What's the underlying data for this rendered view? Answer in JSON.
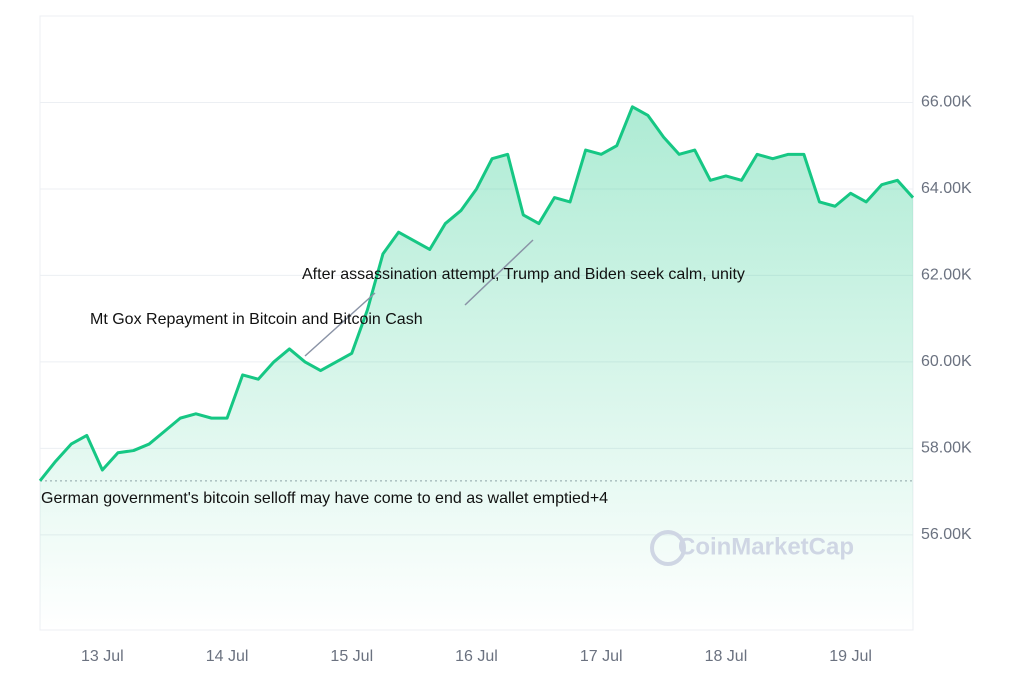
{
  "chart_data": {
    "type": "line",
    "categories": [
      null,
      null,
      null,
      null,
      "13 Jul",
      null,
      null,
      null,
      null,
      null,
      null,
      null,
      "14 Jul",
      null,
      null,
      null,
      null,
      null,
      null,
      null,
      "15 Jul",
      null,
      null,
      null,
      null,
      null,
      null,
      null,
      "16 Jul",
      null,
      null,
      null,
      null,
      null,
      null,
      null,
      "17 Jul",
      null,
      null,
      null,
      null,
      null,
      null,
      null,
      "18 Jul",
      null,
      null,
      null,
      null,
      null,
      null,
      null,
      "19 Jul",
      null,
      null,
      null,
      null
    ],
    "series": [
      {
        "color": "#16c784",
        "values": [
          57250,
          57700,
          58100,
          58300,
          57500,
          57900,
          57950,
          58100,
          58400,
          58700,
          58800,
          58700,
          58700,
          59700,
          59600,
          60000,
          60300,
          60000,
          59800,
          60000,
          60200,
          61200,
          62500,
          63000,
          62800,
          62600,
          63200,
          63500,
          64000,
          64700,
          64800,
          63400,
          63200,
          63800,
          63700,
          64900,
          64800,
          65000,
          65900,
          65700,
          65200,
          64800,
          64900,
          64200,
          64300,
          64200,
          64800,
          64700,
          64800,
          64800,
          63700,
          63600,
          63900,
          63700,
          64100,
          64200,
          63800
        ]
      }
    ],
    "ylim": [
      53800,
      68000
    ],
    "yticks": [
      {
        "value": 56000,
        "label": "56.00K"
      },
      {
        "value": 58000,
        "label": "58.00K"
      },
      {
        "value": 60000,
        "label": "60.00K"
      },
      {
        "value": 62000,
        "label": "62.00K"
      },
      {
        "value": 64000,
        "label": "64.00K"
      },
      {
        "value": 66000,
        "label": "66.00K"
      }
    ],
    "grid": true,
    "baseline": 57250,
    "annotations": [
      "German government's bitcoin selloff may have come to end as wallet emptied+4",
      "Mt Gox Repayment in Bitcoin and Bitcoin Cash",
      "After assassination attempt, Trump and Biden seek calm, unity"
    ],
    "watermark": "CoinMarketCap"
  }
}
